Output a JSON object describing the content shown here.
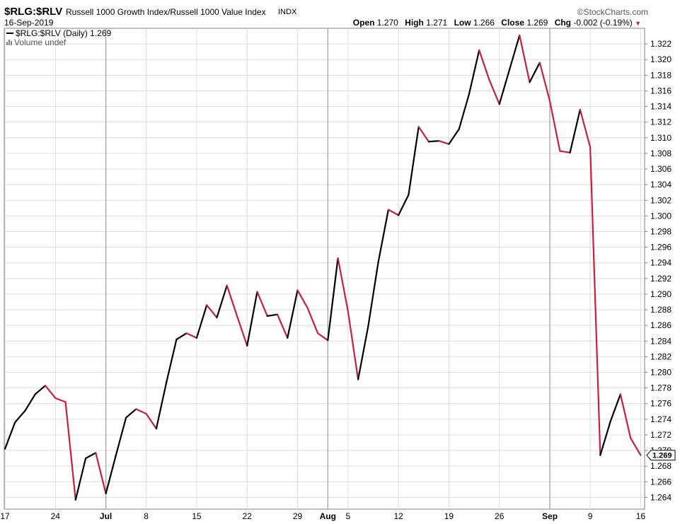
{
  "header": {
    "symbol": "$RLG:$RLV",
    "name": "Russell 1000 Growth Index/Russell 1000 Value Index",
    "exchange": "INDX",
    "date": "16-Sep-2019",
    "credit": "©StockCharts.com",
    "open_label": "Open",
    "open_value": "1.270",
    "high_label": "High",
    "high_value": "1.271",
    "low_label": "Low",
    "low_value": "1.266",
    "close_label": "Close",
    "close_value": "1.269",
    "chg_label": "Chg",
    "chg_value": "-0.002 (-0.19%)",
    "chg_arrow": "▼"
  },
  "legend": {
    "series_label": "$RLG:$RLV (Daily) 1.269",
    "volume_label": "Volume undef"
  },
  "last_value_label": "1.269",
  "colors": {
    "up": "#000000",
    "down": "#cc1e3c",
    "grid": "#dcdcdc",
    "axis": "#808080",
    "month_grid": "#a8a8a8"
  },
  "chart_data": {
    "type": "line",
    "title": "$RLG:$RLV (Daily)",
    "ylim": [
      1.2625,
      1.324
    ],
    "grid": true,
    "legend_position": "top-left",
    "y_ticks": [
      "1.264",
      "1.266",
      "1.268",
      "1.270",
      "1.272",
      "1.274",
      "1.276",
      "1.278",
      "1.280",
      "1.282",
      "1.284",
      "1.286",
      "1.288",
      "1.290",
      "1.292",
      "1.294",
      "1.296",
      "1.298",
      "1.300",
      "1.302",
      "1.304",
      "1.306",
      "1.308",
      "1.310",
      "1.312",
      "1.314",
      "1.316",
      "1.318",
      "1.320",
      "1.322"
    ],
    "x_tick_labels": [
      {
        "label": "17",
        "date": "2019-06-17",
        "bold": false
      },
      {
        "label": "24",
        "date": "2019-06-24",
        "bold": false
      },
      {
        "label": "Jul",
        "date": "2019-07-01",
        "bold": true
      },
      {
        "label": "8",
        "date": "2019-07-08",
        "bold": false
      },
      {
        "label": "15",
        "date": "2019-07-15",
        "bold": false
      },
      {
        "label": "22",
        "date": "2019-07-22",
        "bold": false
      },
      {
        "label": "29",
        "date": "2019-07-29",
        "bold": false
      },
      {
        "label": "Aug",
        "date": "2019-08-01",
        "bold": true
      },
      {
        "label": "5",
        "date": "2019-08-05",
        "bold": false
      },
      {
        "label": "12",
        "date": "2019-08-12",
        "bold": false
      },
      {
        "label": "19",
        "date": "2019-08-19",
        "bold": false
      },
      {
        "label": "26",
        "date": "2019-08-26",
        "bold": false
      },
      {
        "label": "Sep",
        "date": "2019-09-03",
        "bold": true
      },
      {
        "label": "9",
        "date": "2019-09-09",
        "bold": false
      },
      {
        "label": "16",
        "date": "2019-09-16",
        "bold": false
      }
    ],
    "x": [
      "2019-06-17",
      "2019-06-18",
      "2019-06-19",
      "2019-06-20",
      "2019-06-21",
      "2019-06-24",
      "2019-06-25",
      "2019-06-26",
      "2019-06-27",
      "2019-06-28",
      "2019-07-01",
      "2019-07-02",
      "2019-07-03",
      "2019-07-05",
      "2019-07-08",
      "2019-07-09",
      "2019-07-10",
      "2019-07-11",
      "2019-07-12",
      "2019-07-15",
      "2019-07-16",
      "2019-07-17",
      "2019-07-18",
      "2019-07-19",
      "2019-07-22",
      "2019-07-23",
      "2019-07-24",
      "2019-07-25",
      "2019-07-26",
      "2019-07-29",
      "2019-07-30",
      "2019-07-31",
      "2019-08-01",
      "2019-08-02",
      "2019-08-05",
      "2019-08-06",
      "2019-08-07",
      "2019-08-08",
      "2019-08-09",
      "2019-08-12",
      "2019-08-13",
      "2019-08-14",
      "2019-08-15",
      "2019-08-16",
      "2019-08-19",
      "2019-08-20",
      "2019-08-21",
      "2019-08-22",
      "2019-08-23",
      "2019-08-26",
      "2019-08-27",
      "2019-08-28",
      "2019-08-29",
      "2019-08-30",
      "2019-09-03",
      "2019-09-04",
      "2019-09-05",
      "2019-09-06",
      "2019-09-09",
      "2019-09-10",
      "2019-09-11",
      "2019-09-12",
      "2019-09-13",
      "2019-09-16"
    ],
    "series": [
      {
        "name": "$RLG:$RLV",
        "values": [
          1.2702,
          1.2736,
          1.2751,
          1.2772,
          1.2783,
          1.2767,
          1.2762,
          1.2637,
          1.269,
          1.2697,
          1.2645,
          1.2694,
          1.2742,
          1.2753,
          1.2747,
          1.2728,
          1.2787,
          1.2842,
          1.285,
          1.2844,
          1.2886,
          1.287,
          1.2911,
          1.2872,
          1.2834,
          1.2903,
          1.2872,
          1.2874,
          1.2844,
          1.2905,
          1.2882,
          1.285,
          1.2841,
          1.2946,
          1.2878,
          1.2791,
          1.2859,
          1.2941,
          1.3008,
          1.3001,
          1.3027,
          1.3114,
          1.3095,
          1.3096,
          1.3092,
          1.3111,
          1.3156,
          1.3212,
          1.3174,
          1.3143,
          1.3187,
          1.3231,
          1.3171,
          1.3196,
          1.3147,
          1.3083,
          1.3081,
          1.3136,
          1.3088,
          1.2694,
          1.2737,
          1.2772,
          1.2716,
          1.2694
        ]
      }
    ]
  }
}
